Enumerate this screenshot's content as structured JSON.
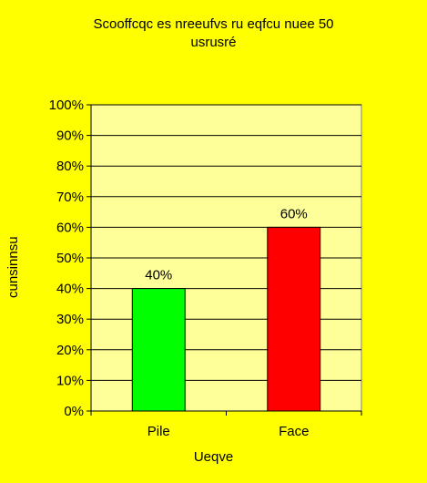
{
  "chart_data": {
    "type": "bar",
    "title_lines": [
      "Scooffcqc es nreeufvs ru eqfcu nuee 50",
      "usrusré"
    ],
    "xlabel": "Ueqve",
    "ylabel": "cunsinnsu",
    "categories": [
      "Pile",
      "Face"
    ],
    "values": [
      40,
      60
    ],
    "data_labels": [
      "40%",
      "60%"
    ],
    "bar_colors": [
      "#00ff00",
      "#ff0000"
    ],
    "ylim": [
      0,
      100
    ],
    "yticks": [
      0,
      10,
      20,
      30,
      40,
      50,
      60,
      70,
      80,
      90,
      100
    ],
    "ytick_labels": [
      "0%",
      "10%",
      "20%",
      "30%",
      "40%",
      "50%",
      "60%",
      "70%",
      "80%",
      "90%",
      "100%"
    ],
    "grid": true,
    "legend": "none",
    "background_color": "#ffff00",
    "plot_area_color": "#ffff99"
  }
}
